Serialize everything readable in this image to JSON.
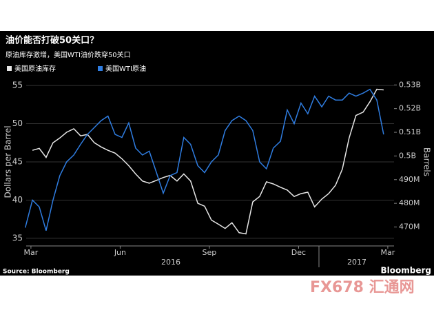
{
  "chart_data": {
    "type": "line",
    "title": "油价能否打破50关口？",
    "subtitle": "原油库存激增，美国WTI油价跌穿50关口",
    "ylabel": "Dollars per Barrel",
    "y2label": "Barrels",
    "source": "Source: Bloomberg",
    "brand": "Bloomberg",
    "watermark": "FX678 汇通网",
    "year_labels": [
      "2016",
      "2017"
    ],
    "x": [
      -0.19,
      0.05,
      0.28,
      0.51,
      0.74,
      0.97,
      1.2,
      1.44,
      1.67,
      1.9,
      2.13,
      2.36,
      2.59,
      2.83,
      3.06,
      3.29,
      3.52,
      3.75,
      3.98,
      4.22,
      4.45,
      4.68,
      4.91,
      5.14,
      5.37,
      5.61,
      5.84,
      6.07,
      6.3,
      6.53,
      6.76,
      7.0,
      7.23,
      7.46,
      7.69,
      7.92,
      8.15,
      8.39,
      8.62,
      8.85,
      9.08,
      9.31,
      9.54,
      9.78,
      10.01,
      10.24,
      10.47,
      10.7,
      10.93,
      11.17,
      11.4,
      11.63,
      11.86
    ],
    "xlim": [
      -0.16,
      12.21
    ],
    "xticks": [
      {
        "value": 0,
        "label": "Mar"
      },
      {
        "value": 3,
        "label": "Jun"
      },
      {
        "value": 6,
        "label": "Sep"
      },
      {
        "value": 9,
        "label": "Dec"
      },
      {
        "value": 12,
        "label": "Mar"
      }
    ],
    "ylim": [
      34,
      56
    ],
    "yticks": [
      35,
      40,
      45,
      50,
      55
    ],
    "y2lim": [
      462,
      533
    ],
    "y2ticks": [
      {
        "value": 470,
        "label": "470M"
      },
      {
        "value": 480,
        "label": "480M"
      },
      {
        "value": 490,
        "label": "490M"
      },
      {
        "value": 500,
        "label": "0.5B"
      },
      {
        "value": 510,
        "label": "0.51B"
      },
      {
        "value": 520,
        "label": "0.52B"
      },
      {
        "value": 530,
        "label": "0.53B"
      }
    ],
    "grid": true,
    "series": [
      {
        "name": "美国原油库存",
        "color": "#e6e6e6",
        "axis": "y2",
        "values": [
          null,
          502.4,
          503.2,
          499.4,
          505.6,
          507.6,
          510.0,
          511.5,
          508.5,
          509.1,
          505.6,
          503.8,
          502.4,
          501.2,
          498.8,
          495.9,
          492.4,
          489.4,
          488.5,
          489.7,
          490.9,
          491.8,
          489.4,
          492.4,
          489.4,
          480.0,
          478.8,
          472.9,
          471.2,
          469.4,
          471.8,
          467.6,
          467.1,
          480.6,
          482.9,
          489.1,
          488.2,
          486.8,
          485.6,
          482.9,
          484.1,
          484.7,
          478.5,
          481.8,
          484.1,
          487.6,
          494.4,
          507.6,
          517.1,
          518.5,
          522.9,
          528.2,
          527.9
        ]
      },
      {
        "name": "美国WTI原油",
        "color": "#2f7de1",
        "values": [
          36.4,
          40.0,
          39.1,
          36.0,
          40.0,
          43.2,
          45.0,
          45.9,
          47.3,
          48.6,
          49.5,
          50.4,
          51.0,
          48.6,
          48.2,
          50.1,
          46.8,
          45.9,
          46.4,
          43.6,
          40.9,
          43.2,
          43.6,
          48.2,
          47.3,
          44.5,
          43.6,
          45.0,
          45.9,
          49.1,
          50.4,
          51.0,
          50.4,
          49.1,
          45.0,
          44.1,
          46.8,
          47.7,
          51.8,
          50.0,
          52.7,
          51.3,
          53.6,
          52.2,
          53.6,
          53.1,
          53.1,
          54.0,
          53.6,
          54.0,
          54.5,
          53.1,
          48.6
        ]
      }
    ]
  }
}
